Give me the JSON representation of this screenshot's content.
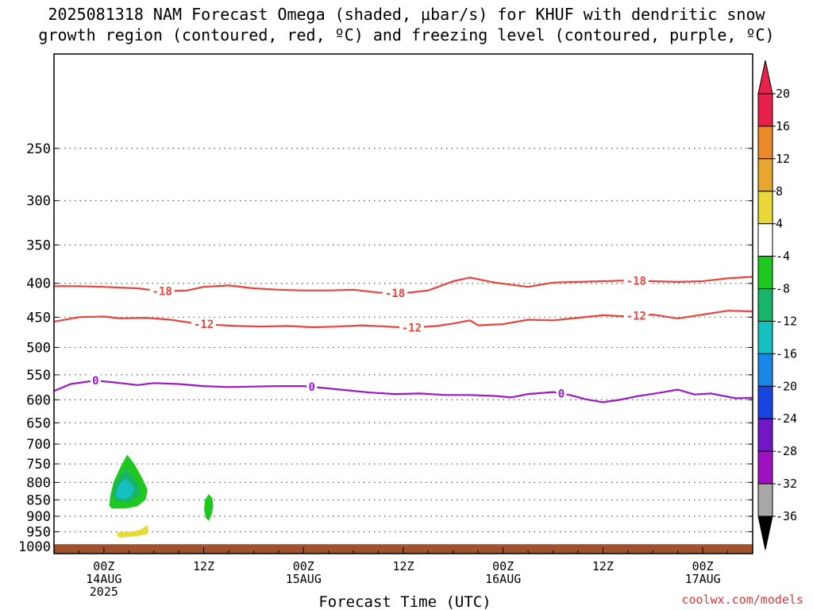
{
  "title_line1": "2025081318 NAM Forecast Omega (shaded, μbar/s) for KHUF with dendritic snow",
  "title_line2": "growth region (contoured, red, ºC) and freezing level (contoured, purple, ºC)",
  "credit": "coolwx.com/models",
  "chart_data": {
    "type": "contour",
    "xlabel": "Forecast Time (UTC)",
    "ylabel": "",
    "xlim_hours": [
      -6,
      78
    ],
    "ylim": [
      1025,
      180
    ],
    "y_scale": "log",
    "grid": true,
    "x_ticks": [
      {
        "hour": 0,
        "lines": [
          "00Z",
          "14AUG",
          "2025"
        ]
      },
      {
        "hour": 12,
        "lines": [
          "12Z"
        ]
      },
      {
        "hour": 24,
        "lines": [
          "00Z",
          "15AUG"
        ]
      },
      {
        "hour": 36,
        "lines": [
          "12Z"
        ]
      },
      {
        "hour": 48,
        "lines": [
          "00Z",
          "16AUG"
        ]
      },
      {
        "hour": 60,
        "lines": [
          "12Z"
        ]
      },
      {
        "hour": 72,
        "lines": [
          "00Z",
          "17AUG"
        ]
      }
    ],
    "y_ticks": [
      250,
      300,
      350,
      400,
      450,
      500,
      550,
      600,
      650,
      700,
      750,
      800,
      850,
      900,
      950,
      1000
    ],
    "colorbar": {
      "labels": [
        "20",
        "16",
        "12",
        "8",
        "4",
        "-4",
        "-8",
        "-12",
        "-16",
        "-20",
        "-24",
        "-28",
        "-32",
        "-36"
      ],
      "colors": [
        "#e8204a",
        "#ec8a2a",
        "#e8a830",
        "#e8d838",
        "#ffffff",
        "#1ec81e",
        "#18b468",
        "#16c0c0",
        "#1888e8",
        "#1844e0",
        "#7018c8",
        "#a010c0",
        "#a8a8a8",
        "#000000"
      ]
    },
    "contours": [
      {
        "name": "-18",
        "color": "#e8423a",
        "points": [
          [
            -6,
            404
          ],
          [
            -3,
            404
          ],
          [
            0,
            405
          ],
          [
            4,
            407
          ],
          [
            7,
            411
          ],
          [
            10,
            410
          ],
          [
            12,
            405
          ],
          [
            15,
            403
          ],
          [
            18,
            407
          ],
          [
            21,
            409
          ],
          [
            24,
            410
          ],
          [
            27,
            410
          ],
          [
            30,
            409
          ],
          [
            33,
            413
          ],
          [
            36,
            414
          ],
          [
            39,
            410
          ],
          [
            42,
            397
          ],
          [
            44,
            392
          ],
          [
            47,
            399
          ],
          [
            51,
            405
          ],
          [
            54,
            399
          ],
          [
            57,
            398
          ],
          [
            60,
            397
          ],
          [
            63,
            396
          ],
          [
            66,
            397
          ],
          [
            69,
            398
          ],
          [
            72,
            397
          ],
          [
            75,
            393
          ],
          [
            78,
            391
          ]
        ],
        "labels": [
          {
            "hour": 7,
            "value": -18
          },
          {
            "hour": 35,
            "value": -18
          },
          {
            "hour": 64,
            "value": -18
          }
        ]
      },
      {
        "name": "-12",
        "color": "#e8423a",
        "points": [
          [
            -6,
            457
          ],
          [
            -3,
            450
          ],
          [
            0,
            449
          ],
          [
            2,
            452
          ],
          [
            5,
            451
          ],
          [
            8,
            454
          ],
          [
            10,
            458
          ],
          [
            13,
            462
          ],
          [
            16,
            464
          ],
          [
            19,
            465
          ],
          [
            22,
            464
          ],
          [
            25,
            466
          ],
          [
            28,
            465
          ],
          [
            31,
            463
          ],
          [
            34,
            465
          ],
          [
            37,
            467
          ],
          [
            40,
            464
          ],
          [
            42,
            460
          ],
          [
            44,
            455
          ],
          [
            45,
            463
          ],
          [
            48,
            461
          ],
          [
            51,
            454
          ],
          [
            54,
            455
          ],
          [
            57,
            451
          ],
          [
            60,
            447
          ],
          [
            63,
            449
          ],
          [
            66,
            446
          ],
          [
            69,
            452
          ],
          [
            72,
            446
          ],
          [
            75,
            440
          ],
          [
            78,
            441
          ]
        ],
        "labels": [
          {
            "hour": 12,
            "value": -12
          },
          {
            "hour": 37,
            "value": -12
          },
          {
            "hour": 64,
            "value": -12
          }
        ]
      },
      {
        "name": "0",
        "color": "#9a18c8",
        "points": [
          [
            -6,
            582
          ],
          [
            -4,
            568
          ],
          [
            -1,
            561
          ],
          [
            2,
            566
          ],
          [
            4,
            570
          ],
          [
            6,
            566
          ],
          [
            9,
            568
          ],
          [
            12,
            572
          ],
          [
            15,
            574
          ],
          [
            18,
            573
          ],
          [
            21,
            572
          ],
          [
            24,
            572
          ],
          [
            26,
            575
          ],
          [
            29,
            580
          ],
          [
            32,
            585
          ],
          [
            35,
            588
          ],
          [
            38,
            587
          ],
          [
            41,
            590
          ],
          [
            44,
            590
          ],
          [
            47,
            592
          ],
          [
            49,
            595
          ],
          [
            51,
            588
          ],
          [
            54,
            584
          ],
          [
            56,
            590
          ],
          [
            58,
            599
          ],
          [
            60,
            605
          ],
          [
            62,
            600
          ],
          [
            64,
            593
          ],
          [
            67,
            585
          ],
          [
            69,
            579
          ],
          [
            71,
            589
          ],
          [
            73,
            587
          ],
          [
            76,
            597
          ],
          [
            78,
            596
          ]
        ],
        "labels": [
          {
            "hour": -1,
            "value": 0
          },
          {
            "hour": 25,
            "value": 0
          },
          {
            "hour": 55,
            "value": 0
          }
        ]
      }
    ],
    "shaded_regions": [
      {
        "level": "-4 to -8",
        "color": "#1ec81e",
        "outline": [
          [
            2.8,
            728
          ],
          [
            3.6,
            750
          ],
          [
            4.6,
            790
          ],
          [
            5.2,
            820
          ],
          [
            5.0,
            848
          ],
          [
            4.0,
            868
          ],
          [
            2.6,
            875
          ],
          [
            1.0,
            875
          ],
          [
            0.7,
            868
          ],
          [
            0.8,
            840
          ],
          [
            1.2,
            800
          ],
          [
            2.0,
            760
          ]
        ]
      },
      {
        "level": "-8 to -12",
        "color": "#18b468",
        "outline": [
          [
            2.7,
            762
          ],
          [
            3.6,
            790
          ],
          [
            4.3,
            815
          ],
          [
            4.1,
            838
          ],
          [
            3.0,
            855
          ],
          [
            1.6,
            855
          ],
          [
            1.1,
            840
          ],
          [
            1.3,
            810
          ],
          [
            2.0,
            782
          ]
        ]
      },
      {
        "level": "-12 to -16",
        "color": "#16c0c0",
        "outline": [
          [
            2.6,
            790
          ],
          [
            3.3,
            805
          ],
          [
            3.6,
            822
          ],
          [
            3.2,
            840
          ],
          [
            2.3,
            848
          ],
          [
            1.5,
            840
          ],
          [
            1.6,
            820
          ],
          [
            2.0,
            803
          ]
        ]
      },
      {
        "level": "-4 to -8",
        "color": "#1ec81e",
        "outline": [
          [
            12.6,
            835
          ],
          [
            13.0,
            845
          ],
          [
            13.1,
            870
          ],
          [
            12.9,
            895
          ],
          [
            12.6,
            912
          ],
          [
            12.3,
            905
          ],
          [
            12.1,
            880
          ],
          [
            12.2,
            850
          ]
        ]
      },
      {
        "level": "4 to 8",
        "color": "#e8d838",
        "outline": [
          [
            1.7,
            953
          ],
          [
            3.5,
            950
          ],
          [
            4.5,
            943
          ],
          [
            5.2,
            930
          ],
          [
            5.3,
            940
          ],
          [
            5.1,
            958
          ],
          [
            3.7,
            964
          ],
          [
            1.9,
            968
          ],
          [
            1.6,
            962
          ]
        ]
      }
    ],
    "surface": {
      "color": "#a0522d",
      "top_pressure_hpa": 992
    }
  }
}
